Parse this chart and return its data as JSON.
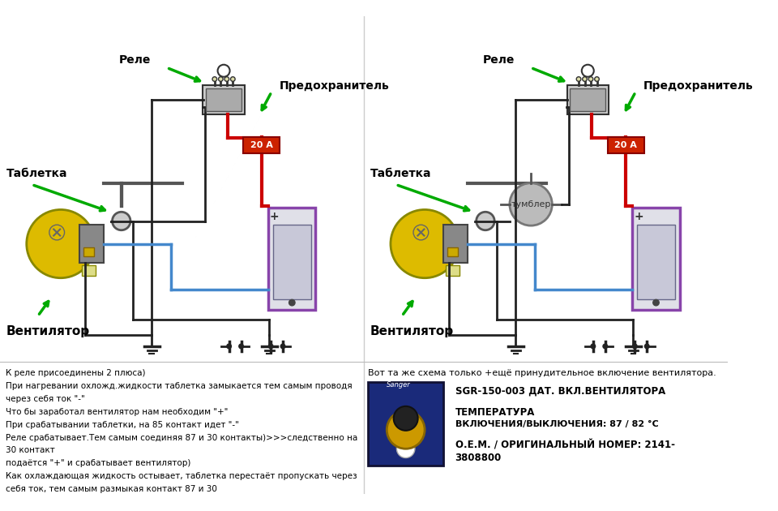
{
  "bg_color": "#ffffff",
  "left_diagram": {
    "labels": {
      "tabletka": "Таблетка",
      "rele": "Реле",
      "predohranitel": "Предохранитель",
      "ventilyator": "Вентилятор",
      "fuse_label": "20 А"
    }
  },
  "right_diagram": {
    "labels": {
      "tabletka": "Таблетка",
      "rele": "Реле",
      "predohranitel": "Предохранитель",
      "ventilyator": "Вентилятор",
      "tumbler": "тумблер",
      "fuse_label": "20 А"
    }
  },
  "bottom_left_text": [
    "К реле присоединены 2 плюса)",
    "При нагревании охложд.жидкости таблетка замыкается тем самым проводя",
    "через себя ток \"-\"",
    "Что бы заработал вентилятор нам необходим \"+\"",
    "При срабатывании таблетки, на 85 контакт идет \"-\"",
    "Реле срабатывает.Тем самым соединяя 87 и 30 контакты)>>>следственно на",
    "30 контакт",
    "подаётся \"+\" и срабатывает вентилятор)",
    "Как охлаждающая жидкость остывает, таблетка перестаёт пропускать через",
    "себя ток, тем самым размыкая контакт 87 и 30"
  ],
  "bottom_right_text": [
    "Вот та же схема только +ещё принудительное включение вентилятора.",
    "SGR-150-003 ДАТ. ВКЛ.ВЕНТИЛЯТОРА",
    "ТЕМПЕРАТУРА",
    "ВКЛЮЧЕНИЯ/ВЫКЛЮЧЕНИЯ: 87 / 82 °C",
    "О.Е.М. / ОРИГИНАЛЬНЫЙ НОМЕР: 2141-",
    "3808800"
  ],
  "colors": {
    "red_wire": "#cc0000",
    "blue_wire": "#4488cc",
    "black_wire": "#222222",
    "green_arrow": "#00aa00",
    "battery_border": "#8844aa",
    "fan_yellow": "#ddbb00",
    "fuse_red": "#cc2200",
    "tumbler_gray": "#888888"
  }
}
